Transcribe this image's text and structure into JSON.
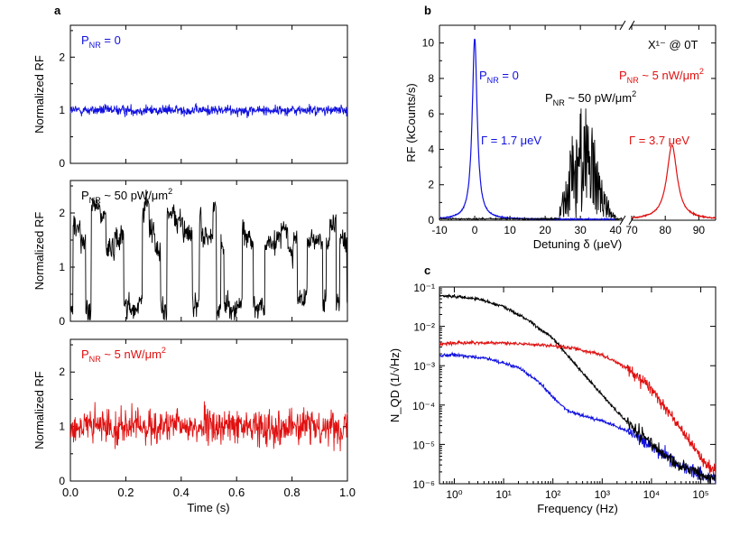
{
  "colors": {
    "blue": "#1010e0",
    "black": "#000000",
    "red": "#e01010"
  },
  "chart_data": [
    {
      "id": "a1",
      "panel_label": "a",
      "type": "line",
      "title": "",
      "xlabel": "",
      "ylabel": "Normalized RF",
      "xlim": [
        0,
        1
      ],
      "ylim": [
        0,
        2.6
      ],
      "xticks": [],
      "yticks": [
        "0",
        "1",
        "2"
      ],
      "annotation": {
        "text": "P",
        "sub": "NR",
        "rest": " = 0",
        "color": "blue"
      },
      "series": [
        {
          "name": "P_NR = 0",
          "color": "blue",
          "mean": 1.0,
          "noise": 0.07,
          "style": "white"
        }
      ]
    },
    {
      "id": "a2",
      "panel_label": "",
      "type": "line",
      "title": "",
      "xlabel": "",
      "ylabel": "Normalized RF",
      "xlim": [
        0,
        1
      ],
      "ylim": [
        0,
        2.6
      ],
      "xticks": [],
      "yticks": [
        "0",
        "1",
        "2"
      ],
      "annotation": {
        "text": "P",
        "sub": "NR",
        "rest": " ~ 50 pW/μm",
        "sup": "2",
        "color": "black"
      },
      "series": [
        {
          "name": "P_NR ~ 50 pW/um2",
          "color": "black",
          "mean": 1.2,
          "noise": 0.15,
          "style": "telegraph"
        }
      ]
    },
    {
      "id": "a3",
      "panel_label": "",
      "type": "line",
      "title": "",
      "xlabel": "Time (s)",
      "ylabel": "Normalized RF",
      "xlim": [
        0,
        1
      ],
      "ylim": [
        0,
        2.6
      ],
      "xticks": [
        "0.0",
        "0.2",
        "0.4",
        "0.6",
        "0.8",
        "1.0"
      ],
      "yticks": [
        "0",
        "1",
        "2"
      ],
      "annotation": {
        "text": "P",
        "sub": "NR",
        "rest": " ~ 5 nW/μm",
        "sup": "2",
        "color": "red"
      },
      "series": [
        {
          "name": "P_NR ~ 5 nW/um2",
          "color": "red",
          "mean": 1.0,
          "noise": 0.22,
          "style": "white"
        }
      ]
    },
    {
      "id": "b",
      "panel_label": "b",
      "type": "line",
      "title": "X¹⁻ @ 0T",
      "xlabel": "Detuning δ (μeV)",
      "ylabel": "RF (kCounts/s)",
      "ylim": [
        0,
        11
      ],
      "broken_axis": true,
      "x_segments": [
        [
          -10,
          42
        ],
        [
          70,
          95
        ]
      ],
      "xticks": [
        "-10",
        "0",
        "10",
        "20",
        "30",
        "40",
        "70",
        "80",
        "90"
      ],
      "yticks": [
        "0",
        "2",
        "4",
        "6",
        "8",
        "10"
      ],
      "annotations": [
        {
          "text": "P",
          "sub": "NR",
          "rest": " = 0",
          "color": "blue"
        },
        {
          "text": "Γ = 1.7 μeV",
          "color": "blue"
        },
        {
          "text": "P",
          "sub": "NR",
          "rest": " ~ 50 pW/μm",
          "sup": "2",
          "color": "black"
        },
        {
          "text": "P",
          "sub": "NR",
          "rest": " ~ 5 nW/μm",
          "sup": "2",
          "color": "red"
        },
        {
          "text": "Γ = 3.7 μeV",
          "color": "red"
        }
      ],
      "series": [
        {
          "name": "P_NR = 0",
          "color": "blue",
          "shape": "lorentzian",
          "center": 0,
          "fwhm": 1.7,
          "amplitude": 10.2,
          "x_range": [
            -10,
            40
          ]
        },
        {
          "name": "P_NR ~ 50 pW/um2",
          "color": "black",
          "shape": "fluctuating",
          "center": 31,
          "x_range": [
            -10,
            42
          ],
          "peak_max": 6.3
        },
        {
          "name": "P_NR ~ 5 nW/um2",
          "color": "red",
          "shape": "lorentzian",
          "center": 82,
          "fwhm": 3.7,
          "amplitude": 4.2,
          "x_range": [
            70,
            95
          ]
        }
      ]
    },
    {
      "id": "c",
      "panel_label": "c",
      "type": "line",
      "title": "",
      "xlabel": "Frequency (Hz)",
      "ylabel": "N_QD (1/√Hz)",
      "xscale": "log",
      "yscale": "log",
      "xlim": [
        0.5,
        200000
      ],
      "ylim": [
        1e-06,
        0.1
      ],
      "xticks": [
        "10⁰",
        "10¹",
        "10²",
        "10³",
        "10⁴",
        "10⁵"
      ],
      "yticks": [
        "10⁻⁶",
        "10⁻⁵",
        "10⁻⁴",
        "10⁻³",
        "10⁻²",
        "10⁻¹"
      ],
      "series": [
        {
          "name": "P_NR = 0",
          "color": "blue",
          "points": [
            [
              0.5,
              0.0018
            ],
            [
              1,
              0.0019
            ],
            [
              5,
              0.0015
            ],
            [
              20,
              0.0009
            ],
            [
              50,
              0.0004
            ],
            [
              100,
              0.00016
            ],
            [
              200,
              7e-05
            ],
            [
              500,
              5e-05
            ],
            [
              1000,
              4e-05
            ],
            [
              3000,
              2.3e-05
            ],
            [
              10000,
              9e-06
            ],
            [
              30000,
              3.5e-06
            ],
            [
              100000,
              1.7e-06
            ],
            [
              200000,
              1.4e-06
            ]
          ]
        },
        {
          "name": "P_NR ~ 50 pW/um2",
          "color": "black",
          "points": [
            [
              0.5,
              0.06
            ],
            [
              1,
              0.058
            ],
            [
              3,
              0.05
            ],
            [
              10,
              0.032
            ],
            [
              30,
              0.015
            ],
            [
              100,
              0.005
            ],
            [
              300,
              0.001
            ],
            [
              1000,
              0.00018
            ],
            [
              3000,
              4e-05
            ],
            [
              10000,
              1e-05
            ],
            [
              30000,
              3.5e-06
            ],
            [
              100000,
              1.6e-06
            ],
            [
              200000,
              1.3e-06
            ]
          ]
        },
        {
          "name": "P_NR ~ 5 nW/um2",
          "color": "red",
          "points": [
            [
              0.5,
              0.0035
            ],
            [
              1,
              0.0038
            ],
            [
              10,
              0.0038
            ],
            [
              100,
              0.0032
            ],
            [
              300,
              0.0027
            ],
            [
              1000,
              0.0019
            ],
            [
              3000,
              0.0009
            ],
            [
              10000,
              0.00025
            ],
            [
              30000,
              4e-05
            ],
            [
              100000,
              5e-06
            ],
            [
              200000,
              1.8e-06
            ]
          ]
        }
      ]
    }
  ]
}
